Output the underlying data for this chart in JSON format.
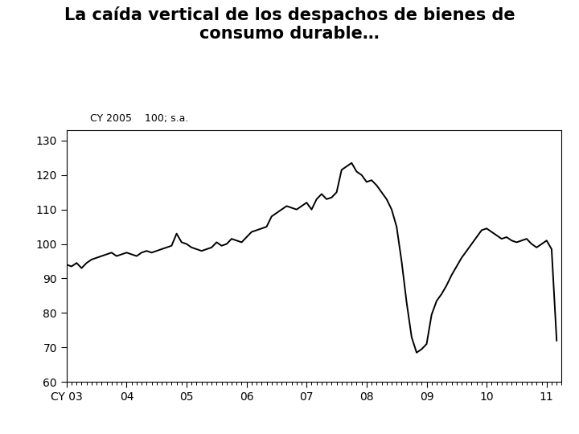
{
  "title": "La caída vertical de los despachos de bienes de\nconsumo durable…",
  "subtitle": "CY 2005    100; s.a.",
  "xlim": [
    2003.0,
    2011.25
  ],
  "ylim": [
    60,
    133
  ],
  "yticks": [
    60,
    70,
    80,
    90,
    100,
    110,
    120,
    130
  ],
  "xtick_labels": [
    "CY 03",
    "04",
    "05",
    "06",
    "07",
    "08",
    "09",
    "10",
    "11"
  ],
  "xtick_positions": [
    2003.0,
    2004.0,
    2005.0,
    2006.0,
    2007.0,
    2008.0,
    2009.0,
    2010.0,
    2011.0
  ],
  "line_color": "#000000",
  "line_width": 1.4,
  "background_color": "#ffffff",
  "title_fontsize": 15,
  "subtitle_fontsize": 9,
  "tick_fontsize": 10,
  "series": [
    [
      2003.0,
      94.0
    ],
    [
      2003.083,
      93.5
    ],
    [
      2003.167,
      94.5
    ],
    [
      2003.25,
      93.0
    ],
    [
      2003.333,
      94.5
    ],
    [
      2003.417,
      95.5
    ],
    [
      2003.5,
      96.0
    ],
    [
      2003.583,
      96.5
    ],
    [
      2003.667,
      97.0
    ],
    [
      2003.75,
      97.5
    ],
    [
      2003.833,
      96.5
    ],
    [
      2003.917,
      97.0
    ],
    [
      2004.0,
      97.5
    ],
    [
      2004.083,
      97.0
    ],
    [
      2004.167,
      96.5
    ],
    [
      2004.25,
      97.5
    ],
    [
      2004.333,
      98.0
    ],
    [
      2004.417,
      97.5
    ],
    [
      2004.5,
      98.0
    ],
    [
      2004.583,
      98.5
    ],
    [
      2004.667,
      99.0
    ],
    [
      2004.75,
      99.5
    ],
    [
      2004.833,
      103.0
    ],
    [
      2004.917,
      100.5
    ],
    [
      2005.0,
      100.0
    ],
    [
      2005.083,
      99.0
    ],
    [
      2005.167,
      98.5
    ],
    [
      2005.25,
      98.0
    ],
    [
      2005.333,
      98.5
    ],
    [
      2005.417,
      99.0
    ],
    [
      2005.5,
      100.5
    ],
    [
      2005.583,
      99.5
    ],
    [
      2005.667,
      100.0
    ],
    [
      2005.75,
      101.5
    ],
    [
      2005.833,
      101.0
    ],
    [
      2005.917,
      100.5
    ],
    [
      2006.0,
      102.0
    ],
    [
      2006.083,
      103.5
    ],
    [
      2006.167,
      104.0
    ],
    [
      2006.25,
      104.5
    ],
    [
      2006.333,
      105.0
    ],
    [
      2006.417,
      108.0
    ],
    [
      2006.5,
      109.0
    ],
    [
      2006.583,
      110.0
    ],
    [
      2006.667,
      111.0
    ],
    [
      2006.75,
      110.5
    ],
    [
      2006.833,
      110.0
    ],
    [
      2006.917,
      111.0
    ],
    [
      2007.0,
      112.0
    ],
    [
      2007.083,
      110.0
    ],
    [
      2007.167,
      113.0
    ],
    [
      2007.25,
      114.5
    ],
    [
      2007.333,
      113.0
    ],
    [
      2007.417,
      113.5
    ],
    [
      2007.5,
      115.0
    ],
    [
      2007.583,
      121.5
    ],
    [
      2007.667,
      122.5
    ],
    [
      2007.75,
      123.5
    ],
    [
      2007.833,
      121.0
    ],
    [
      2007.917,
      120.0
    ],
    [
      2008.0,
      118.0
    ],
    [
      2008.083,
      118.5
    ],
    [
      2008.167,
      117.0
    ],
    [
      2008.25,
      115.0
    ],
    [
      2008.333,
      113.0
    ],
    [
      2008.417,
      110.0
    ],
    [
      2008.5,
      105.0
    ],
    [
      2008.583,
      95.0
    ],
    [
      2008.667,
      83.0
    ],
    [
      2008.75,
      73.0
    ],
    [
      2008.833,
      68.5
    ],
    [
      2008.917,
      69.5
    ],
    [
      2009.0,
      71.0
    ],
    [
      2009.083,
      79.5
    ],
    [
      2009.167,
      83.5
    ],
    [
      2009.25,
      85.5
    ],
    [
      2009.333,
      88.0
    ],
    [
      2009.417,
      91.0
    ],
    [
      2009.5,
      93.5
    ],
    [
      2009.583,
      96.0
    ],
    [
      2009.667,
      98.0
    ],
    [
      2009.75,
      100.0
    ],
    [
      2009.833,
      102.0
    ],
    [
      2009.917,
      104.0
    ],
    [
      2010.0,
      104.5
    ],
    [
      2010.083,
      103.5
    ],
    [
      2010.167,
      102.5
    ],
    [
      2010.25,
      101.5
    ],
    [
      2010.333,
      102.0
    ],
    [
      2010.417,
      101.0
    ],
    [
      2010.5,
      100.5
    ],
    [
      2010.583,
      101.0
    ],
    [
      2010.667,
      101.5
    ],
    [
      2010.75,
      100.0
    ],
    [
      2010.833,
      99.0
    ],
    [
      2010.917,
      100.0
    ],
    [
      2011.0,
      101.0
    ],
    [
      2011.083,
      98.5
    ],
    [
      2011.167,
      72.0
    ]
  ]
}
